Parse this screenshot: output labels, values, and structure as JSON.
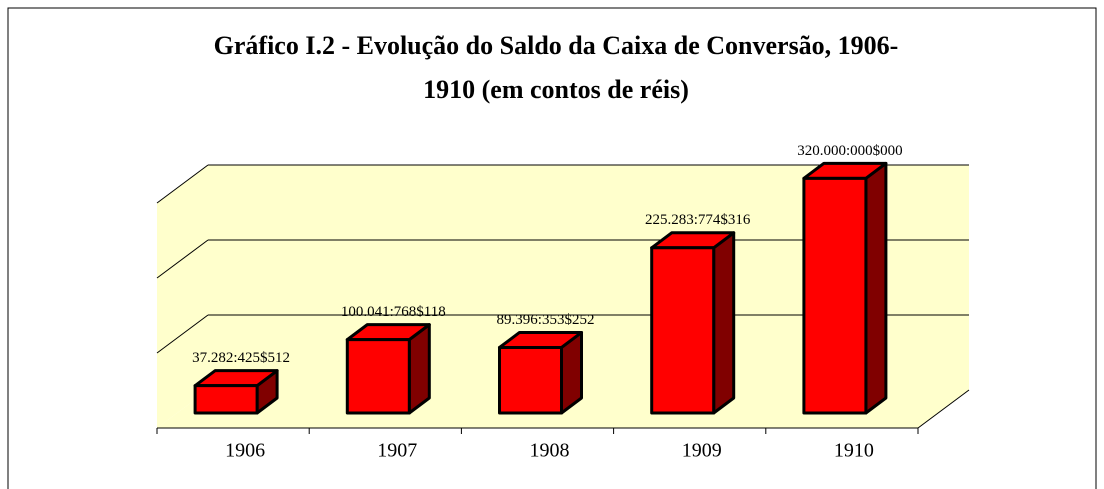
{
  "chart_data": {
    "type": "bar3d",
    "title": "Gráfico I.2 - Evolução do Saldo da Caixa de Conversão, 1906-",
    "subtitle": "1910 (em contos de réis)",
    "categories": [
      "1906",
      "1907",
      "1908",
      "1909",
      "1910"
    ],
    "values": [
      37282.425512,
      100041.768118,
      89396.353252,
      225283.774316,
      320000
    ],
    "value_labels": [
      "37.282:425$512",
      "100.041:768$118",
      "89.396:353$252",
      "225.283:774$316",
      "320.000:000$000"
    ],
    "color": "#ff0000",
    "side_color": "#800000",
    "wall_color": "#ffffcc",
    "ylim": [
      0,
      300000
    ],
    "yticks": [
      0,
      100000,
      200000,
      300000
    ],
    "grid": true
  }
}
